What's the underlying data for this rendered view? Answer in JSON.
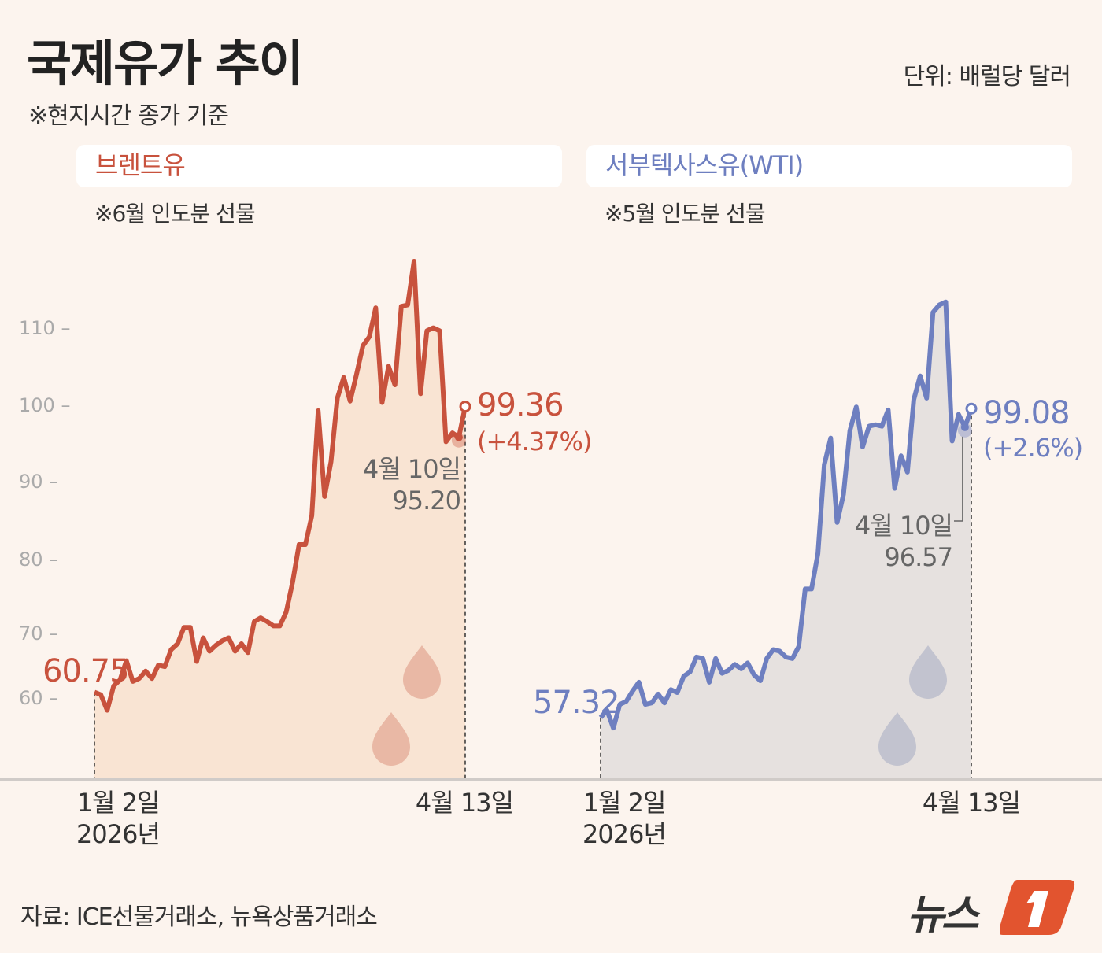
{
  "header": {
    "title": "국제유가 추이",
    "subtitle": "※현지시간 종가 기준",
    "unit": "단위: 배럴당 달러"
  },
  "source": "자료: ICE선물거래소, 뉴욕상품거래소",
  "logo": {
    "text": "뉴스1",
    "color": "#e2542f"
  },
  "colors": {
    "background": "#fcf4ee",
    "brent": "#c8523d",
    "brent_fill": "#f9e4d3",
    "wti": "#6e7fc0",
    "wti_fill": "#e6e1df"
  },
  "chart_data": [
    {
      "type": "area",
      "title": "브렌트유",
      "note": "※6월 인도분 선물",
      "series_name": "브렌트유",
      "x_start_label": "1월 2일",
      "x_start_year": "2026년",
      "x_end_label": "4월 13일",
      "ylim": [
        49,
        122
      ],
      "yticks": [
        110,
        100,
        90,
        80,
        70,
        60
      ],
      "grid": false,
      "start_value_label": "60.75",
      "end_value_label": "99.36",
      "end_change_label": "(+4.37%)",
      "annotation": {
        "date": "4월 10일",
        "value": "95.20"
      },
      "values": [
        60.75,
        60.4,
        58.3,
        61.6,
        62.4,
        65.0,
        62.2,
        62.6,
        63.6,
        62.6,
        64.4,
        64.2,
        66.5,
        67.3,
        69.5,
        69.5,
        64.9,
        68.1,
        66.3,
        67.1,
        67.7,
        68.1,
        66.3,
        67.3,
        66.1,
        70.3,
        70.8,
        70.3,
        69.7,
        69.7,
        71.6,
        75.6,
        80.7,
        80.7,
        84.6,
        98.8,
        87.2,
        91.9,
        100.5,
        103.3,
        100.1,
        103.7,
        107.6,
        108.8,
        112.7,
        99.9,
        104.8,
        102.3,
        112.9,
        113.1,
        119.0,
        101.1,
        109.6,
        110.0,
        109.6,
        94.6,
        95.8,
        95.2,
        99.36
      ]
    },
    {
      "type": "area",
      "title": "서부텍사스유(WTI)",
      "note": "※5월 인도분 선물",
      "series_name": "서부텍사스유(WTI)",
      "x_start_label": "1월 2일",
      "x_start_year": "2026년",
      "x_end_label": "4월 13일",
      "ylim": [
        49,
        122
      ],
      "grid": false,
      "start_value_label": "57.32",
      "end_value_label": "99.08",
      "end_change_label": "(+2.6%)",
      "annotation": {
        "date": "4월 10일",
        "value": "96.57"
      },
      "values": [
        57.32,
        58.3,
        55.9,
        59.1,
        59.5,
        60.9,
        62.1,
        59.1,
        59.3,
        60.5,
        59.3,
        61.1,
        60.7,
        62.9,
        63.5,
        65.5,
        65.3,
        62.1,
        65.3,
        63.3,
        63.7,
        64.5,
        63.9,
        64.7,
        63.1,
        62.3,
        65.3,
        66.5,
        66.3,
        65.5,
        65.3,
        66.9,
        74.7,
        74.7,
        79.5,
        91.5,
        95.1,
        83.7,
        87.5,
        96.1,
        99.3,
        93.9,
        96.7,
        96.9,
        96.7,
        98.9,
        88.3,
        92.7,
        90.5,
        100.3,
        103.5,
        100.5,
        112.1,
        113.1,
        113.5,
        94.7,
        98.3,
        96.57,
        99.08
      ]
    }
  ]
}
